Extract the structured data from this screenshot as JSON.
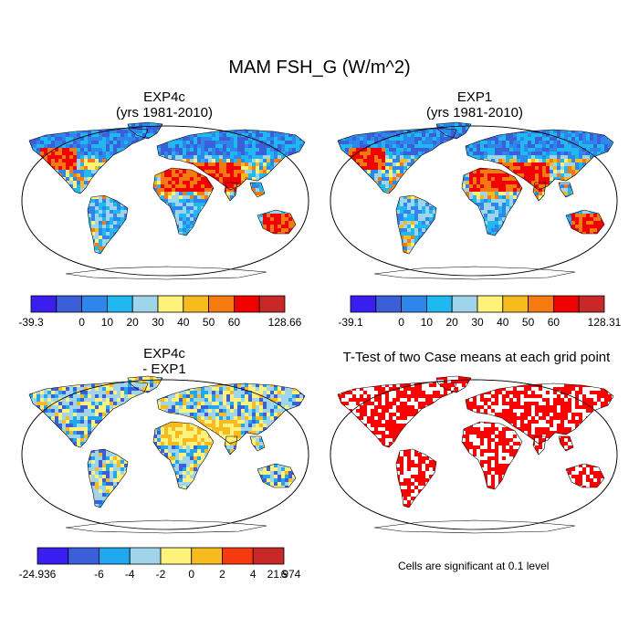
{
  "main_title": "MAM FSH_G (W/m^2)",
  "panels": [
    {
      "title": "EXP4c",
      "subtitle": "(yrs 1981-2010)",
      "scheme": "absolute"
    },
    {
      "title": "EXP1",
      "subtitle": "(yrs 1981-2010)",
      "scheme": "absolute"
    },
    {
      "title": "EXP4c",
      "subtitle": "- EXP1",
      "scheme": "difference"
    },
    {
      "title": "T-Test of two Case means at each grid point",
      "subtitle": "",
      "scheme": "significance"
    }
  ],
  "colorbars": {
    "exp4c": {
      "labels": [
        "-39.3",
        "0",
        "10",
        "20",
        "30",
        "40",
        "50",
        "60",
        "128.66"
      ],
      "colors": [
        "#3a1ef0",
        "#3a5fd9",
        "#2f86ea",
        "#1fb8f0",
        "#9fd4ea",
        "#fff27a",
        "#f7bb20",
        "#f57a10",
        "#f00000",
        "#c82828"
      ]
    },
    "exp1": {
      "labels": [
        "-39.1",
        "0",
        "10",
        "20",
        "30",
        "40",
        "50",
        "60",
        "128.31"
      ],
      "colors": [
        "#3a1ef0",
        "#3a5fd9",
        "#2f86ea",
        "#1fb8f0",
        "#9fd4ea",
        "#fff27a",
        "#f7bb20",
        "#f57a10",
        "#f00000",
        "#c82828"
      ]
    },
    "diff": {
      "labels": [
        "-24.936",
        "-6",
        "-4",
        "-2",
        "0",
        "2",
        "4",
        "6",
        "21.974"
      ],
      "colors": [
        "#3a1ef0",
        "#3a5fd9",
        "#1fa8f0",
        "#9fd4ea",
        "#fff27a",
        "#f7bb20",
        "#f53a10",
        "#c82828"
      ]
    }
  },
  "significance_note": "Cells are significant at 0.1 level",
  "colors": {
    "significant": "#ff0000",
    "coast": "#000000"
  }
}
